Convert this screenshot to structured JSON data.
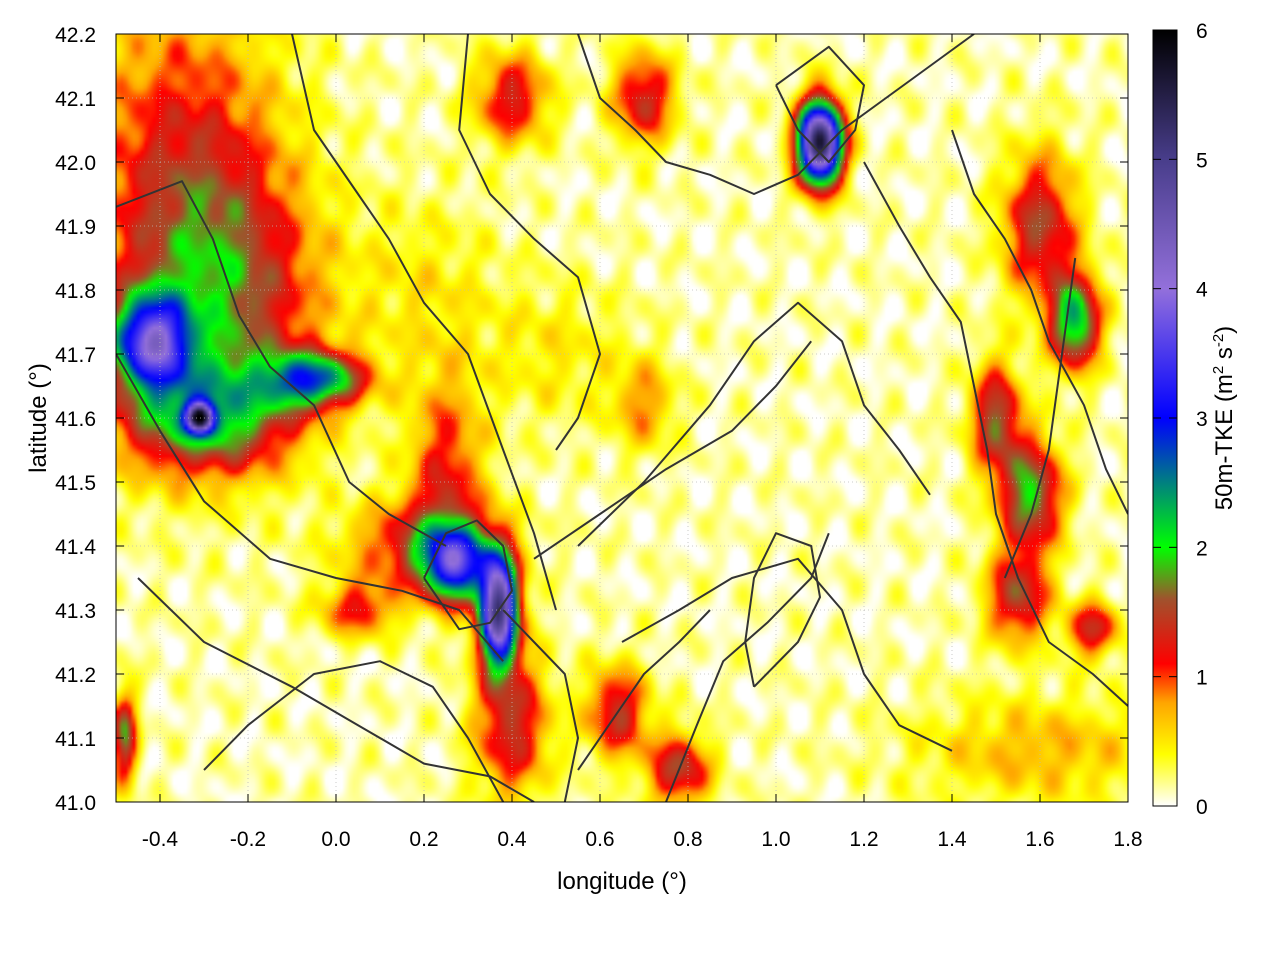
{
  "chart_data": {
    "type": "heatmap",
    "title": "",
    "xlabel": "longitude (°)",
    "ylabel": "latitude (°)",
    "xlim": [
      -0.5,
      1.8
    ],
    "ylim": [
      41.0,
      42.2
    ],
    "x_ticks": [
      "-0.4",
      "-0.2",
      "0.0",
      "0.2",
      "0.4",
      "0.6",
      "0.8",
      "1.0",
      "1.2",
      "1.4",
      "1.6",
      "1.8"
    ],
    "y_ticks": [
      "41.0",
      "41.1",
      "41.2",
      "41.3",
      "41.4",
      "41.5",
      "41.6",
      "41.7",
      "41.8",
      "41.9",
      "42.0",
      "42.1",
      "42.2"
    ],
    "grid": true,
    "colorbar": {
      "label_main": "50m-TKE (m",
      "label_sup1": "2",
      "label_mid": " s",
      "label_sup2": "-2",
      "label_end": ")",
      "range": [
        0,
        6
      ],
      "ticks": [
        "0",
        "1",
        "2",
        "3",
        "4",
        "5",
        "6"
      ],
      "stops": [
        {
          "value": 0.0,
          "color": "#ffffff"
        },
        {
          "value": 0.4,
          "color": "#ffff00"
        },
        {
          "value": 0.8,
          "color": "#ffa500"
        },
        {
          "value": 1.1,
          "color": "#ff0000"
        },
        {
          "value": 1.6,
          "color": "#a0522d"
        },
        {
          "value": 2.0,
          "color": "#00ff00"
        },
        {
          "value": 2.5,
          "color": "#008080"
        },
        {
          "value": 3.0,
          "color": "#0000ff"
        },
        {
          "value": 4.0,
          "color": "#9370db"
        },
        {
          "value": 5.0,
          "color": "#483d8b"
        },
        {
          "value": 6.0,
          "color": "#000000"
        }
      ]
    },
    "hotspots": [
      {
        "lon": -0.35,
        "lat": 41.95,
        "sx": 0.16,
        "sy": 0.22,
        "amp": 1.2
      },
      {
        "lon": -0.22,
        "lat": 41.78,
        "sx": 0.14,
        "sy": 0.14,
        "amp": 1.0
      },
      {
        "lon": -0.3,
        "lat": 41.6,
        "sx": 0.14,
        "sy": 0.06,
        "amp": 1.6
      },
      {
        "lon": -0.42,
        "lat": 41.72,
        "sx": 0.06,
        "sy": 0.05,
        "amp": 3.0
      },
      {
        "lon": -0.31,
        "lat": 41.6,
        "sx": 0.02,
        "sy": 0.015,
        "amp": 4.0
      },
      {
        "lon": -0.05,
        "lat": 41.66,
        "sx": 0.08,
        "sy": 0.03,
        "amp": 2.2
      },
      {
        "lon": 0.25,
        "lat": 41.52,
        "sx": 0.06,
        "sy": 0.1,
        "amp": 1.0
      },
      {
        "lon": 0.2,
        "lat": 41.4,
        "sx": 0.12,
        "sy": 0.05,
        "amp": 1.2
      },
      {
        "lon": 0.37,
        "lat": 41.3,
        "sx": 0.03,
        "sy": 0.06,
        "amp": 4.8
      },
      {
        "lon": 0.27,
        "lat": 41.37,
        "sx": 0.05,
        "sy": 0.04,
        "amp": 2.6
      },
      {
        "lon": 0.4,
        "lat": 41.12,
        "sx": 0.06,
        "sy": 0.08,
        "amp": 1.3
      },
      {
        "lon": 0.64,
        "lat": 41.14,
        "sx": 0.05,
        "sy": 0.05,
        "amp": 1.3
      },
      {
        "lon": 0.78,
        "lat": 41.05,
        "sx": 0.05,
        "sy": 0.04,
        "amp": 1.4
      },
      {
        "lon": 0.7,
        "lat": 41.62,
        "sx": 0.05,
        "sy": 0.05,
        "amp": 0.7
      },
      {
        "lon": 0.2,
        "lat": 41.8,
        "sx": 0.12,
        "sy": 0.1,
        "amp": 0.35
      },
      {
        "lon": 0.5,
        "lat": 41.7,
        "sx": 0.12,
        "sy": 0.08,
        "amp": 0.35
      },
      {
        "lon": 1.1,
        "lat": 42.03,
        "sx": 0.035,
        "sy": 0.045,
        "amp": 5.5
      },
      {
        "lon": 0.4,
        "lat": 42.1,
        "sx": 0.06,
        "sy": 0.05,
        "amp": 1.2
      },
      {
        "lon": 0.7,
        "lat": 42.1,
        "sx": 0.05,
        "sy": 0.05,
        "amp": 1.3
      },
      {
        "lon": 1.6,
        "lat": 41.9,
        "sx": 0.06,
        "sy": 0.08,
        "amp": 1.4
      },
      {
        "lon": 1.68,
        "lat": 41.75,
        "sx": 0.04,
        "sy": 0.05,
        "amp": 2.2
      },
      {
        "lon": 1.5,
        "lat": 41.6,
        "sx": 0.04,
        "sy": 0.06,
        "amp": 1.5
      },
      {
        "lon": 1.58,
        "lat": 41.48,
        "sx": 0.05,
        "sy": 0.06,
        "amp": 1.8
      },
      {
        "lon": 1.55,
        "lat": 41.32,
        "sx": 0.05,
        "sy": 0.05,
        "amp": 1.4
      },
      {
        "lon": 1.72,
        "lat": 41.27,
        "sx": 0.04,
        "sy": 0.03,
        "amp": 1.3
      },
      {
        "lon": 1.6,
        "lat": 41.08,
        "sx": 0.2,
        "sy": 0.06,
        "amp": 0.6
      },
      {
        "lon": -0.48,
        "lat": 41.1,
        "sx": 0.02,
        "sy": 0.05,
        "amp": 1.6
      },
      {
        "lon": 0.05,
        "lat": 41.3,
        "sx": 0.06,
        "sy": 0.03,
        "amp": 1.0
      }
    ],
    "contours": [
      [
        [
          -0.5,
          41.93
        ],
        [
          -0.35,
          41.97
        ],
        [
          -0.28,
          41.88
        ],
        [
          -0.22,
          41.76
        ],
        [
          -0.15,
          41.68
        ],
        [
          -0.05,
          41.62
        ],
        [
          0.03,
          41.5
        ],
        [
          0.12,
          41.45
        ],
        [
          0.25,
          41.4
        ]
      ],
      [
        [
          -0.5,
          41.7
        ],
        [
          -0.4,
          41.58
        ],
        [
          -0.3,
          41.47
        ],
        [
          -0.15,
          41.38
        ],
        [
          0.0,
          41.35
        ],
        [
          0.15,
          41.33
        ],
        [
          0.28,
          41.3
        ],
        [
          0.38,
          41.22
        ]
      ],
      [
        [
          -0.45,
          41.35
        ],
        [
          -0.3,
          41.25
        ],
        [
          -0.1,
          41.18
        ],
        [
          0.05,
          41.12
        ],
        [
          0.2,
          41.06
        ],
        [
          0.35,
          41.04
        ],
        [
          0.45,
          41.0
        ]
      ],
      [
        [
          -0.3,
          41.05
        ],
        [
          -0.2,
          41.12
        ],
        [
          -0.05,
          41.2
        ],
        [
          0.1,
          41.22
        ],
        [
          0.22,
          41.18
        ],
        [
          0.3,
          41.1
        ],
        [
          0.38,
          41.0
        ]
      ],
      [
        [
          -0.1,
          42.2
        ],
        [
          -0.05,
          42.05
        ],
        [
          0.05,
          41.95
        ],
        [
          0.12,
          41.88
        ],
        [
          0.2,
          41.78
        ],
        [
          0.3,
          41.7
        ],
        [
          0.38,
          41.55
        ],
        [
          0.45,
          41.42
        ],
        [
          0.5,
          41.3
        ]
      ],
      [
        [
          0.3,
          42.2
        ],
        [
          0.28,
          42.05
        ],
        [
          0.35,
          41.95
        ],
        [
          0.45,
          41.88
        ],
        [
          0.55,
          41.82
        ],
        [
          0.6,
          41.7
        ],
        [
          0.55,
          41.6
        ],
        [
          0.5,
          41.55
        ]
      ],
      [
        [
          0.55,
          41.4
        ],
        [
          0.7,
          41.5
        ],
        [
          0.85,
          41.62
        ],
        [
          0.95,
          41.72
        ],
        [
          1.05,
          41.78
        ],
        [
          1.15,
          41.72
        ],
        [
          1.2,
          41.62
        ],
        [
          1.28,
          41.55
        ],
        [
          1.35,
          41.48
        ]
      ],
      [
        [
          0.45,
          41.38
        ],
        [
          0.6,
          41.45
        ],
        [
          0.75,
          41.52
        ],
        [
          0.9,
          41.58
        ],
        [
          1.0,
          41.65
        ],
        [
          1.08,
          41.72
        ]
      ],
      [
        [
          0.65,
          41.25
        ],
        [
          0.78,
          41.3
        ],
        [
          0.9,
          41.35
        ],
        [
          1.05,
          41.38
        ],
        [
          1.15,
          41.3
        ],
        [
          1.2,
          41.2
        ],
        [
          1.28,
          41.12
        ],
        [
          1.4,
          41.08
        ]
      ],
      [
        [
          0.75,
          41.0
        ],
        [
          0.82,
          41.12
        ],
        [
          0.88,
          41.22
        ],
        [
          0.98,
          41.28
        ],
        [
          1.08,
          41.35
        ],
        [
          1.12,
          41.42
        ]
      ],
      [
        [
          0.55,
          41.05
        ],
        [
          0.62,
          41.12
        ],
        [
          0.7,
          41.2
        ],
        [
          0.78,
          41.25
        ],
        [
          0.85,
          41.3
        ]
      ],
      [
        [
          1.2,
          42.0
        ],
        [
          1.28,
          41.9
        ],
        [
          1.35,
          41.82
        ],
        [
          1.42,
          41.75
        ],
        [
          1.45,
          41.65
        ],
        [
          1.48,
          41.55
        ],
        [
          1.5,
          41.45
        ],
        [
          1.55,
          41.35
        ],
        [
          1.62,
          41.25
        ],
        [
          1.72,
          41.2
        ],
        [
          1.8,
          41.15
        ]
      ],
      [
        [
          1.4,
          42.05
        ],
        [
          1.45,
          41.95
        ],
        [
          1.52,
          41.88
        ],
        [
          1.58,
          41.8
        ],
        [
          1.62,
          41.72
        ],
        [
          1.7,
          41.62
        ],
        [
          1.75,
          41.52
        ],
        [
          1.8,
          41.45
        ]
      ],
      [
        [
          0.55,
          42.2
        ],
        [
          0.6,
          42.1
        ],
        [
          0.68,
          42.05
        ],
        [
          0.75,
          42.0
        ],
        [
          0.85,
          41.98
        ],
        [
          0.95,
          41.95
        ],
        [
          1.05,
          41.98
        ],
        [
          1.15,
          42.05
        ],
        [
          1.25,
          42.1
        ],
        [
          1.35,
          42.15
        ],
        [
          1.45,
          42.2
        ]
      ],
      [
        [
          1.0,
          42.12
        ],
        [
          1.05,
          42.05
        ],
        [
          1.12,
          42.0
        ],
        [
          1.18,
          42.05
        ],
        [
          1.2,
          42.12
        ],
        [
          1.12,
          42.18
        ],
        [
          1.0,
          42.12
        ]
      ],
      [
        [
          0.38,
          41.3
        ],
        [
          0.45,
          41.25
        ],
        [
          0.52,
          41.2
        ],
        [
          0.55,
          41.1
        ],
        [
          0.52,
          41.0
        ]
      ],
      [
        [
          0.2,
          41.35
        ],
        [
          0.25,
          41.42
        ],
        [
          0.32,
          41.44
        ],
        [
          0.38,
          41.4
        ],
        [
          0.4,
          41.33
        ],
        [
          0.35,
          41.28
        ],
        [
          0.28,
          41.27
        ],
        [
          0.2,
          41.35
        ]
      ],
      [
        [
          1.52,
          41.35
        ],
        [
          1.58,
          41.45
        ],
        [
          1.62,
          41.55
        ],
        [
          1.64,
          41.65
        ],
        [
          1.66,
          41.75
        ],
        [
          1.68,
          41.85
        ]
      ],
      [
        [
          0.95,
          41.18
        ],
        [
          1.05,
          41.25
        ],
        [
          1.1,
          41.32
        ],
        [
          1.08,
          41.4
        ],
        [
          1.0,
          41.42
        ],
        [
          0.95,
          41.35
        ],
        [
          0.93,
          41.25
        ],
        [
          0.95,
          41.18
        ]
      ]
    ]
  }
}
